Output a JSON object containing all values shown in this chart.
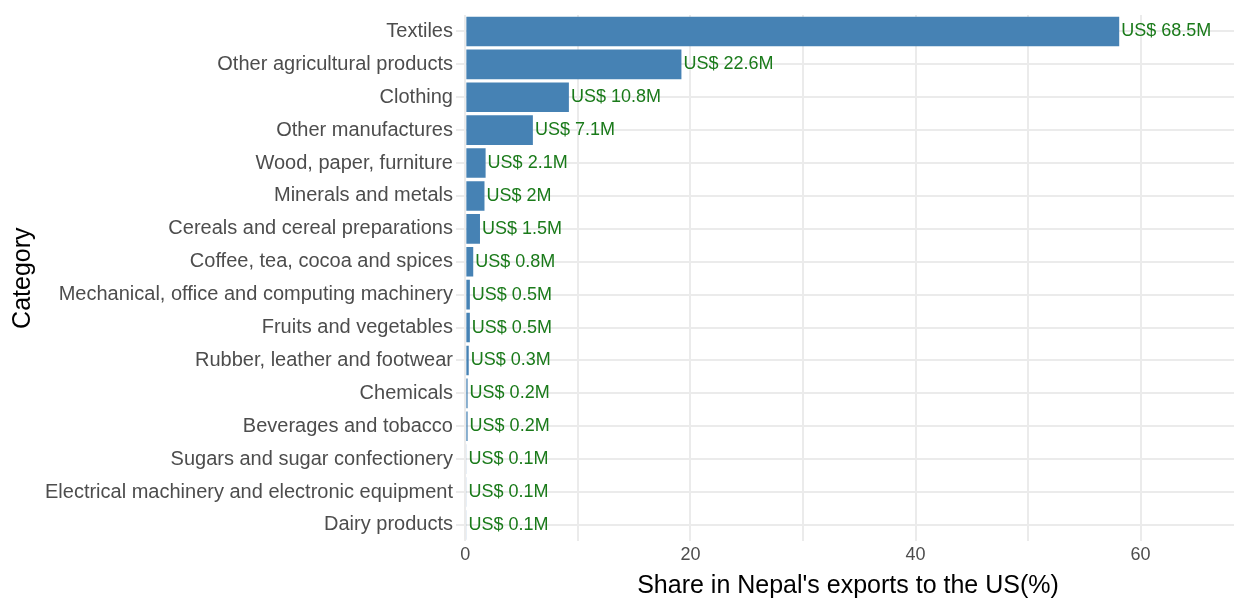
{
  "chart_data": {
    "type": "bar",
    "orientation": "horizontal",
    "xlabel": "Share in Nepal's exports to the US(%)",
    "ylabel": "Category",
    "categories": [
      "Textiles",
      "Other agricultural products",
      "Clothing",
      "Other manufactures",
      "Wood, paper, furniture",
      "Minerals and metals",
      "Cereals and cereal preparations",
      "Coffee, tea, cocoa and spices",
      "Mechanical, office and computing machinery",
      "Fruits and vegetables",
      "Rubber, leather and footwear",
      "Chemicals",
      "Beverages and tobacco",
      "Sugars and sugar confectionery",
      "Electrical machinery and electronic equipment",
      "Dairy products"
    ],
    "values": [
      58.1,
      19.2,
      9.2,
      6.0,
      1.8,
      1.7,
      1.3,
      0.7,
      0.4,
      0.4,
      0.3,
      0.2,
      0.2,
      0.1,
      0.1,
      0.1
    ],
    "value_labels": [
      "US$ 68.5M",
      "US$ 22.6M",
      "US$ 10.8M",
      "US$ 7.1M",
      "US$ 2.1M",
      "US$ 2M",
      "US$ 1.5M",
      "US$ 0.8M",
      "US$ 0.5M",
      "US$ 0.5M",
      "US$ 0.3M",
      "US$ 0.2M",
      "US$ 0.2M",
      "US$ 0.1M",
      "US$ 0.1M",
      "US$ 0.1M"
    ],
    "color": "#4682b4",
    "xlim": [
      -0.3,
      68.3
    ],
    "xticks": [
      0,
      {
        "value": 10,
        "label": null
      },
      20,
      {
        "value": 30,
        "label": null
      },
      40,
      {
        "value": 50,
        "label": null
      },
      60
    ],
    "grid": true,
    "legend": false
  }
}
